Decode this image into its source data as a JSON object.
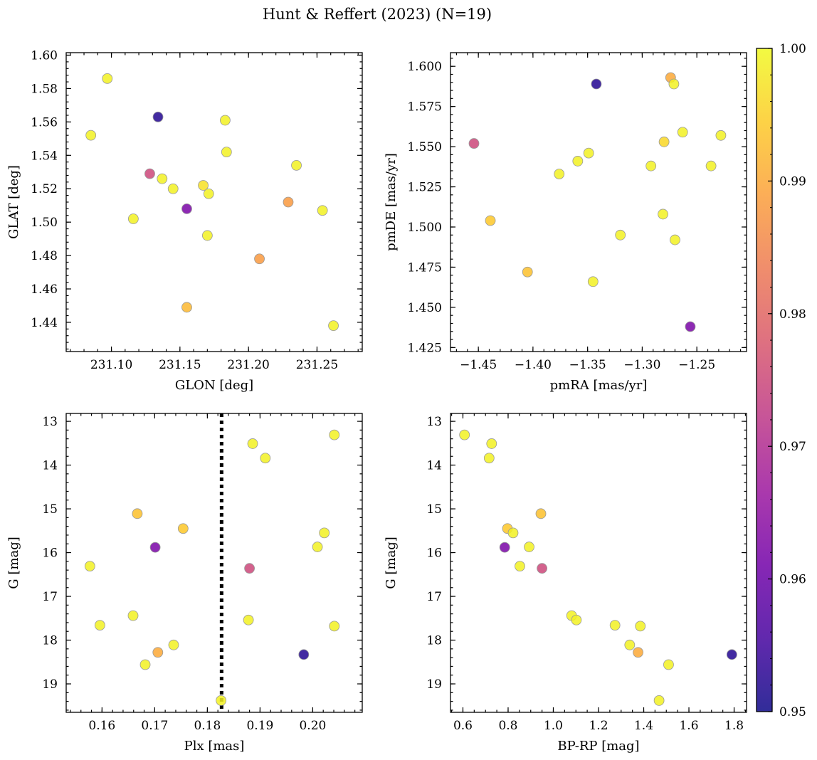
{
  "figure": {
    "title": "Hunt & Reffert (2023) (N=19)"
  },
  "colorbar": {
    "vmin": 0.95,
    "vmax": 1.0,
    "ticks": [
      0.95,
      0.96,
      0.97,
      0.98,
      0.99,
      1.0
    ],
    "tick_labels": [
      "0.95",
      "0.96",
      "0.97",
      "0.98",
      "0.99",
      "1.00"
    ],
    "colormap": "plasma",
    "colormap_stops": [
      "#0d0887",
      "#46039f",
      "#7201a8",
      "#9c179e",
      "#bd3786",
      "#d8576b",
      "#ed7953",
      "#fb9f3a",
      "#fdca26",
      "#f0f921"
    ]
  },
  "marker": {
    "edge_color": "#999999",
    "opacity": 0.85
  },
  "chart_data": [
    {
      "type": "scatter",
      "xlabel": "GLON [deg]",
      "ylabel": "GLAT [deg]",
      "xlim": [
        231.067,
        231.283
      ],
      "ylim": [
        1.4225,
        1.6015
      ],
      "y_inverted": false,
      "xticks": [
        231.1,
        231.15,
        231.2,
        231.25
      ],
      "xtick_labels": [
        "231.10",
        "231.15",
        "231.20",
        "231.25"
      ],
      "xminor": 0.01,
      "yticks": [
        1.44,
        1.46,
        1.48,
        1.5,
        1.52,
        1.54,
        1.56,
        1.58,
        1.6
      ],
      "ytick_labels": [
        "1.44",
        "1.46",
        "1.48",
        "1.50",
        "1.52",
        "1.54",
        "1.56",
        "1.58",
        "1.60"
      ],
      "yminor": 0.004,
      "points": [
        {
          "x": 231.134,
          "y": 1.563,
          "c": 0.952
        },
        {
          "x": 231.155,
          "y": 1.508,
          "c": 0.962
        },
        {
          "x": 231.128,
          "y": 1.529,
          "c": 0.975
        },
        {
          "x": 231.208,
          "y": 1.478,
          "c": 0.988
        },
        {
          "x": 231.229,
          "y": 1.512,
          "c": 0.988
        },
        {
          "x": 231.155,
          "y": 1.449,
          "c": 0.992
        },
        {
          "x": 231.085,
          "y": 1.552,
          "c": 0.999
        },
        {
          "x": 231.097,
          "y": 1.586,
          "c": 0.999
        },
        {
          "x": 231.116,
          "y": 1.502,
          "c": 0.999
        },
        {
          "x": 231.137,
          "y": 1.526,
          "c": 0.999
        },
        {
          "x": 231.145,
          "y": 1.52,
          "c": 0.999
        },
        {
          "x": 231.167,
          "y": 1.522,
          "c": 0.997
        },
        {
          "x": 231.171,
          "y": 1.517,
          "c": 0.999
        },
        {
          "x": 231.17,
          "y": 1.492,
          "c": 0.999
        },
        {
          "x": 231.183,
          "y": 1.561,
          "c": 0.999
        },
        {
          "x": 231.184,
          "y": 1.542,
          "c": 0.999
        },
        {
          "x": 231.235,
          "y": 1.534,
          "c": 0.999
        },
        {
          "x": 231.254,
          "y": 1.507,
          "c": 0.999
        },
        {
          "x": 231.262,
          "y": 1.438,
          "c": 0.999
        }
      ]
    },
    {
      "type": "scatter",
      "xlabel": "pmRA [mas/yr]",
      "ylabel": "pmDE [mas/yr]",
      "xlim": [
        -1.4755,
        -1.2045
      ],
      "ylim": [
        1.4225,
        1.6085
      ],
      "y_inverted": false,
      "xticks": [
        -1.45,
        -1.4,
        -1.35,
        -1.3,
        -1.25
      ],
      "xtick_labels": [
        "−1.45",
        "−1.40",
        "−1.35",
        "−1.30",
        "−1.25"
      ],
      "xminor": 0.01,
      "yticks": [
        1.425,
        1.45,
        1.475,
        1.5,
        1.525,
        1.55,
        1.575,
        1.6
      ],
      "ytick_labels": [
        "1.425",
        "1.450",
        "1.475",
        "1.500",
        "1.525",
        "1.550",
        "1.575",
        "1.600"
      ],
      "yminor": 0.005,
      "points": [
        {
          "x": -1.342,
          "y": 1.589,
          "c": 0.952
        },
        {
          "x": -1.256,
          "y": 1.438,
          "c": 0.962
        },
        {
          "x": -1.454,
          "y": 1.552,
          "c": 0.975
        },
        {
          "x": -1.274,
          "y": 1.593,
          "c": 0.99
        },
        {
          "x": -1.439,
          "y": 1.504,
          "c": 0.994
        },
        {
          "x": -1.405,
          "y": 1.472,
          "c": 0.993
        },
        {
          "x": -1.28,
          "y": 1.553,
          "c": 0.996
        },
        {
          "x": -1.271,
          "y": 1.589,
          "c": 0.999
        },
        {
          "x": -1.263,
          "y": 1.559,
          "c": 0.999
        },
        {
          "x": -1.228,
          "y": 1.557,
          "c": 0.999
        },
        {
          "x": -1.349,
          "y": 1.546,
          "c": 0.999
        },
        {
          "x": -1.359,
          "y": 1.541,
          "c": 0.999
        },
        {
          "x": -1.376,
          "y": 1.533,
          "c": 0.999
        },
        {
          "x": -1.292,
          "y": 1.538,
          "c": 0.999
        },
        {
          "x": -1.237,
          "y": 1.538,
          "c": 0.999
        },
        {
          "x": -1.281,
          "y": 1.508,
          "c": 0.999
        },
        {
          "x": -1.32,
          "y": 1.495,
          "c": 0.999
        },
        {
          "x": -1.27,
          "y": 1.492,
          "c": 0.999
        },
        {
          "x": -1.345,
          "y": 1.466,
          "c": 0.999
        }
      ]
    },
    {
      "type": "scatter",
      "xlabel": "Plx [mas]",
      "ylabel": "G [mag]",
      "xlim": [
        0.1532,
        0.2094
      ],
      "ylim": [
        19.65,
        12.82
      ],
      "y_inverted": true,
      "xticks": [
        0.16,
        0.17,
        0.18,
        0.19,
        0.2
      ],
      "xtick_labels": [
        "0.16",
        "0.17",
        "0.18",
        "0.19",
        "0.20"
      ],
      "xminor": 0.002,
      "yticks": [
        13,
        14,
        15,
        16,
        17,
        18,
        19
      ],
      "ytick_labels": [
        "13",
        "14",
        "15",
        "16",
        "17",
        "18",
        "19"
      ],
      "yminor": 0.2,
      "vline": {
        "x": 0.1827,
        "style": "dotted",
        "color": "#000000"
      },
      "points": [
        {
          "x": 0.1983,
          "y": 18.33,
          "c": 0.952
        },
        {
          "x": 0.1701,
          "y": 15.88,
          "c": 0.962
        },
        {
          "x": 0.188,
          "y": 16.36,
          "c": 0.975
        },
        {
          "x": 0.1706,
          "y": 18.28,
          "c": 0.99
        },
        {
          "x": 0.1667,
          "y": 15.11,
          "c": 0.993
        },
        {
          "x": 0.1754,
          "y": 15.45,
          "c": 0.994
        },
        {
          "x": 0.1577,
          "y": 16.31,
          "c": 0.999
        },
        {
          "x": 0.1596,
          "y": 17.66,
          "c": 0.999
        },
        {
          "x": 0.1659,
          "y": 17.44,
          "c": 0.999
        },
        {
          "x": 0.1682,
          "y": 18.56,
          "c": 0.999
        },
        {
          "x": 0.1736,
          "y": 18.11,
          "c": 0.999
        },
        {
          "x": 0.1826,
          "y": 19.38,
          "c": 0.999
        },
        {
          "x": 0.1878,
          "y": 17.54,
          "c": 0.999
        },
        {
          "x": 0.1886,
          "y": 13.51,
          "c": 0.999
        },
        {
          "x": 0.191,
          "y": 13.84,
          "c": 0.999
        },
        {
          "x": 0.2009,
          "y": 15.87,
          "c": 0.999
        },
        {
          "x": 0.2022,
          "y": 15.55,
          "c": 0.999
        },
        {
          "x": 0.2041,
          "y": 13.31,
          "c": 0.999
        },
        {
          "x": 0.2041,
          "y": 17.68,
          "c": 0.999
        }
      ]
    },
    {
      "type": "scatter",
      "xlabel": "BP-RP [mag]",
      "ylabel": "G [mag]",
      "xlim": [
        0.545,
        1.855
      ],
      "ylim": [
        19.65,
        12.82
      ],
      "y_inverted": true,
      "xticks": [
        0.6,
        0.8,
        1.0,
        1.2,
        1.4,
        1.6,
        1.8
      ],
      "xtick_labels": [
        "0.6",
        "0.8",
        "1.0",
        "1.2",
        "1.4",
        "1.6",
        "1.8"
      ],
      "xminor": 0.05,
      "yticks": [
        13,
        14,
        15,
        16,
        17,
        18,
        19
      ],
      "ytick_labels": [
        "13",
        "14",
        "15",
        "16",
        "17",
        "18",
        "19"
      ],
      "yminor": 0.2,
      "points": [
        {
          "x": 1.79,
          "y": 18.33,
          "c": 0.952
        },
        {
          "x": 0.785,
          "y": 15.88,
          "c": 0.962
        },
        {
          "x": 0.95,
          "y": 16.36,
          "c": 0.975
        },
        {
          "x": 1.375,
          "y": 18.28,
          "c": 0.99
        },
        {
          "x": 0.945,
          "y": 15.11,
          "c": 0.993
        },
        {
          "x": 0.797,
          "y": 15.45,
          "c": 0.994
        },
        {
          "x": 0.607,
          "y": 13.31,
          "c": 0.999
        },
        {
          "x": 0.727,
          "y": 13.51,
          "c": 0.999
        },
        {
          "x": 0.716,
          "y": 13.84,
          "c": 0.999
        },
        {
          "x": 0.822,
          "y": 15.55,
          "c": 0.999
        },
        {
          "x": 0.893,
          "y": 15.87,
          "c": 0.999
        },
        {
          "x": 0.852,
          "y": 16.31,
          "c": 0.999
        },
        {
          "x": 1.081,
          "y": 17.44,
          "c": 0.999
        },
        {
          "x": 1.102,
          "y": 17.54,
          "c": 0.999
        },
        {
          "x": 1.273,
          "y": 17.66,
          "c": 0.999
        },
        {
          "x": 1.385,
          "y": 17.68,
          "c": 0.999
        },
        {
          "x": 1.338,
          "y": 18.11,
          "c": 0.999
        },
        {
          "x": 1.51,
          "y": 18.56,
          "c": 0.999
        },
        {
          "x": 1.468,
          "y": 19.38,
          "c": 0.999
        }
      ]
    }
  ]
}
